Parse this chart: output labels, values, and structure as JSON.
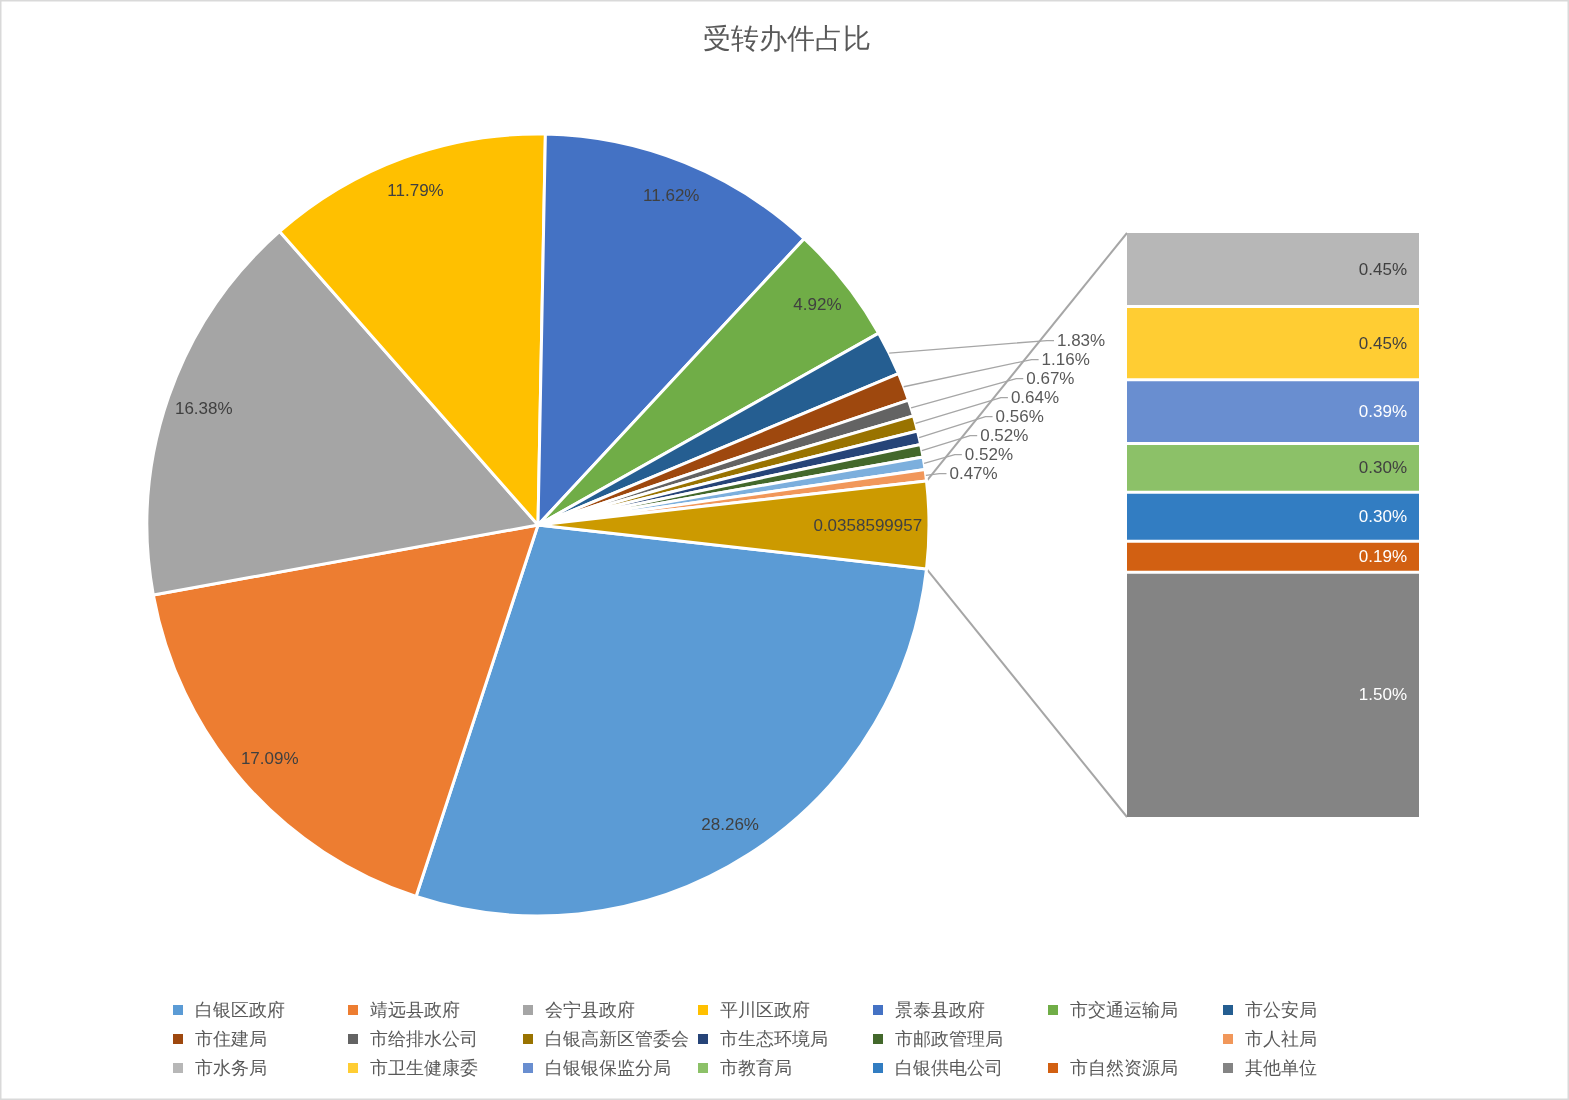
{
  "chart_data": [
    {
      "type": "pie",
      "title": "受转办件占比",
      "categories": [
        "白银区政府",
        "靖远县政府",
        "会宁县政府",
        "平川区政府",
        "景泰县政府",
        "市交通运输局",
        "市公安局",
        "市住建局",
        "市给排水公司",
        "白银高新区管委会",
        "市生态环境局",
        "市邮政管理局",
        null,
        "市人社局",
        null
      ],
      "values": [
        28.26,
        17.09,
        16.38,
        11.79,
        11.62,
        4.92,
        1.83,
        1.16,
        0.67,
        0.64,
        0.56,
        0.52,
        0.52,
        0.47,
        3.58599957
      ],
      "colors": [
        "#5b9bd5",
        "#ed7d31",
        "#a5a5a5",
        "#ffc000",
        "#4472c4",
        "#70ad47",
        "#255e91",
        "#9e480e",
        "#636363",
        "#997300",
        "#264478",
        "#43682b",
        "#7cafdd",
        "#f1975a",
        "#cc9a00"
      ],
      "value_labels": [
        "28.26%",
        "17.09%",
        "16.38%",
        "11.79%",
        "11.62%",
        "4.92%",
        "1.83%",
        "1.16%",
        "0.67%",
        "0.64%",
        "0.56%",
        "0.52%",
        "0.52%",
        "0.47%",
        null
      ],
      "annotations": [
        "0.0358599957"
      ],
      "legend": "bottom"
    },
    {
      "type": "bar",
      "stacked": true,
      "categories": [
        null
      ],
      "series": [
        {
          "name": "其他单位",
          "color": "#848484",
          "values": [
            1.5
          ],
          "value_labels": [
            "1.50%"
          ]
        },
        {
          "name": "市自然资源局",
          "color": "#d26012",
          "values": [
            0.19
          ],
          "value_labels": [
            "0.19%"
          ]
        },
        {
          "name": "白银供电公司",
          "color": "#327dc2",
          "values": [
            0.3
          ],
          "value_labels": [
            "0.30%"
          ]
        },
        {
          "name": "市教育局",
          "color": "#8cc168",
          "values": [
            0.3
          ],
          "value_labels": [
            "0.30%"
          ]
        },
        {
          "name": "白银银保监分局",
          "color": "#698ed0",
          "values": [
            0.39
          ],
          "value_labels": [
            "0.39%"
          ]
        },
        {
          "name": "市卫生健康委",
          "color": "#ffcd33",
          "values": [
            0.45
          ],
          "value_labels": [
            "0.45%"
          ]
        },
        {
          "name": "市水务局",
          "color": "#b7b7b7",
          "values": [
            0.45
          ],
          "value_labels": [
            "0.45%"
          ]
        }
      ],
      "legend": "bottom"
    }
  ]
}
